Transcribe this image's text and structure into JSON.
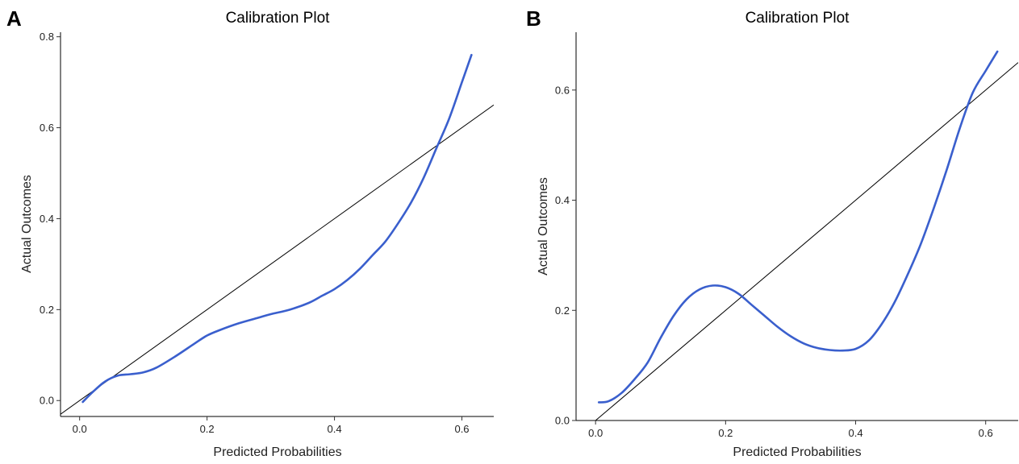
{
  "chart_data": [
    {
      "panel": "A",
      "type": "line",
      "title": "Calibration Plot",
      "xlabel": "Predicted Probabilities",
      "ylabel": "Actual Outcomes",
      "xlim": [
        -0.03,
        0.65
      ],
      "ylim": [
        -0.035,
        0.81
      ],
      "xticks": [
        0.0,
        0.2,
        0.4,
        0.6
      ],
      "xtick_labels": [
        "0.0",
        "0.2",
        "0.4",
        "0.6"
      ],
      "yticks": [
        0.0,
        0.2,
        0.4,
        0.6,
        0.8
      ],
      "ytick_labels": [
        "0.0",
        "0.2",
        "0.4",
        "0.6",
        "0.8"
      ],
      "grid": false,
      "reference_line": {
        "x": [
          -0.03,
          0.65
        ],
        "y": [
          -0.03,
          0.65
        ]
      },
      "series": [
        {
          "color": "#3a5fcd",
          "x": [
            0.005,
            0.02,
            0.04,
            0.06,
            0.08,
            0.1,
            0.12,
            0.15,
            0.18,
            0.2,
            0.22,
            0.25,
            0.28,
            0.3,
            0.33,
            0.36,
            0.38,
            0.4,
            0.42,
            0.44,
            0.46,
            0.48,
            0.5,
            0.52,
            0.54,
            0.56,
            0.58,
            0.6,
            0.615
          ],
          "y": [
            -0.003,
            0.018,
            0.042,
            0.055,
            0.058,
            0.062,
            0.072,
            0.097,
            0.125,
            0.143,
            0.155,
            0.17,
            0.182,
            0.19,
            0.2,
            0.215,
            0.23,
            0.245,
            0.265,
            0.29,
            0.32,
            0.35,
            0.39,
            0.435,
            0.49,
            0.555,
            0.62,
            0.7,
            0.76
          ]
        }
      ]
    },
    {
      "panel": "B",
      "type": "line",
      "title": "Calibration Plot",
      "xlabel": "Predicted Probabilities",
      "ylabel": "Actual Outcomes",
      "xlim": [
        -0.03,
        0.65
      ],
      "ylim": [
        0.0,
        0.705
      ],
      "xticks": [
        0.0,
        0.2,
        0.4,
        0.6
      ],
      "xtick_labels": [
        "0.0",
        "0.2",
        "0.4",
        "0.6"
      ],
      "yticks": [
        0.0,
        0.2,
        0.4,
        0.6
      ],
      "ytick_labels": [
        "0.0",
        "0.2",
        "0.4",
        "0.6"
      ],
      "grid": false,
      "reference_line": {
        "x": [
          0.0,
          0.65
        ],
        "y": [
          0.0,
          0.65
        ]
      },
      "series": [
        {
          "color": "#3a5fcd",
          "x": [
            0.005,
            0.02,
            0.04,
            0.06,
            0.08,
            0.1,
            0.12,
            0.14,
            0.16,
            0.18,
            0.2,
            0.22,
            0.24,
            0.26,
            0.28,
            0.3,
            0.32,
            0.34,
            0.36,
            0.38,
            0.4,
            0.42,
            0.44,
            0.46,
            0.48,
            0.5,
            0.52,
            0.54,
            0.56,
            0.58,
            0.6,
            0.618
          ],
          "y": [
            0.033,
            0.035,
            0.05,
            0.075,
            0.105,
            0.15,
            0.19,
            0.22,
            0.238,
            0.245,
            0.242,
            0.23,
            0.21,
            0.19,
            0.17,
            0.153,
            0.14,
            0.132,
            0.128,
            0.127,
            0.13,
            0.145,
            0.175,
            0.215,
            0.265,
            0.32,
            0.385,
            0.455,
            0.53,
            0.595,
            0.635,
            0.67
          ]
        }
      ]
    }
  ]
}
